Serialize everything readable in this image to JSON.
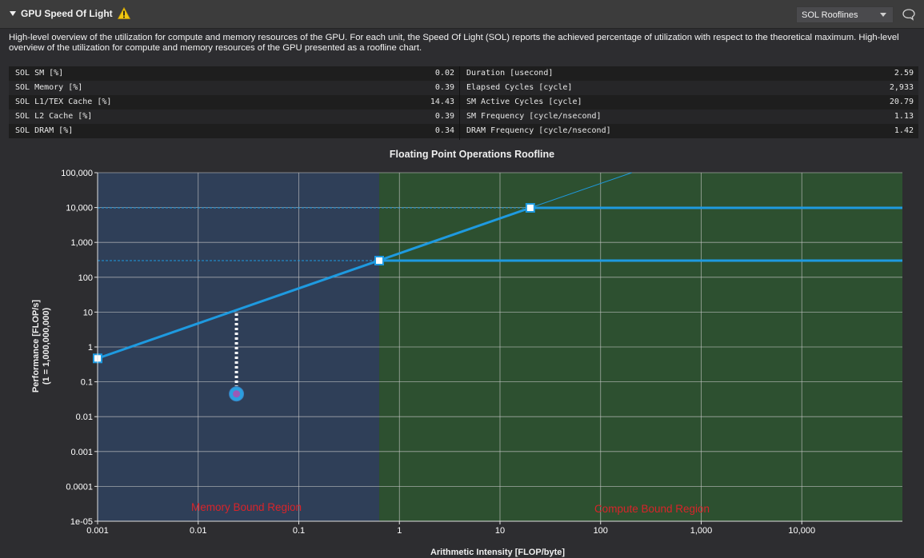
{
  "section": {
    "title": "GPU Speed Of Light",
    "view_selector": "SOL Rooflines"
  },
  "description": "High-level overview of the utilization for compute and memory resources of the GPU. For each unit, the Speed Of Light (SOL) reports the achieved percentage of utilization with respect to the theoretical maximum. High-level overview of the utilization for compute and memory resources of the GPU presented as a roofline chart.",
  "metrics_left": [
    {
      "name": "SOL SM [%]",
      "value": "0.02"
    },
    {
      "name": "SOL Memory [%]",
      "value": "0.39"
    },
    {
      "name": "SOL L1/TEX Cache [%]",
      "value": "14.43"
    },
    {
      "name": "SOL L2 Cache [%]",
      "value": "0.39"
    },
    {
      "name": "SOL DRAM [%]",
      "value": "0.34"
    }
  ],
  "metrics_right": [
    {
      "name": "Duration [usecond]",
      "value": "2.59"
    },
    {
      "name": "Elapsed Cycles [cycle]",
      "value": "2,933"
    },
    {
      "name": "SM Active Cycles [cycle]",
      "value": "20.79"
    },
    {
      "name": "SM Frequency [cycle/nsecond]",
      "value": "1.13"
    },
    {
      "name": "DRAM Frequency [cycle/nsecond]",
      "value": "1.42"
    }
  ],
  "colors": {
    "background": "#2d2d30",
    "header": "#3c3c3c",
    "row_dark": "#1e1e1e",
    "row_light": "#252526",
    "roofline": "#1e9ae0",
    "memory_region": "#2f3f58",
    "compute_region": "#2d5030",
    "region_label": "#d8242a",
    "achieved_point": "#2a9fdf",
    "warning": "#f2c811"
  },
  "chart_data": {
    "type": "scatter",
    "title": "Floating Point Operations Roofline",
    "xlabel": "Arithmetic Intensity [FLOP/byte]",
    "ylabel": "Performance [FLOP/s]",
    "ylabel_sub": "(1 = 1,000,000,000)",
    "xscale": "log",
    "yscale": "log",
    "xlim": [
      0.001,
      100000
    ],
    "ylim": [
      1e-05,
      100000
    ],
    "x_ticks": [
      "0.001",
      "0.01",
      "0.1",
      "1",
      "10",
      "100",
      "1,000",
      "10,000"
    ],
    "y_ticks": [
      "1e-05",
      "0.0001",
      "0.001",
      "0.01",
      "0.1",
      "1",
      "10",
      "100",
      "1,000",
      "10,000",
      "100,000"
    ],
    "grid": true,
    "rooflines": [
      {
        "bandwidth_slope_points": [
          [
            0.001,
            0.47
          ],
          [
            0.63,
            300
          ]
        ],
        "ridge": [
          0.63,
          300
        ],
        "peak": 300
      },
      {
        "bandwidth_slope_points": [
          [
            0.63,
            300
          ],
          [
            20,
            9800
          ]
        ],
        "ridge": [
          20,
          9800
        ],
        "peak": 9800
      }
    ],
    "achieved": {
      "x": 0.024,
      "y": 0.045
    },
    "regions": [
      {
        "label": "Memory Bound Region",
        "x_range": [
          0.001,
          0.63
        ]
      },
      {
        "label": "Compute Bound Region",
        "x_range": [
          0.63,
          100000
        ]
      }
    ]
  }
}
